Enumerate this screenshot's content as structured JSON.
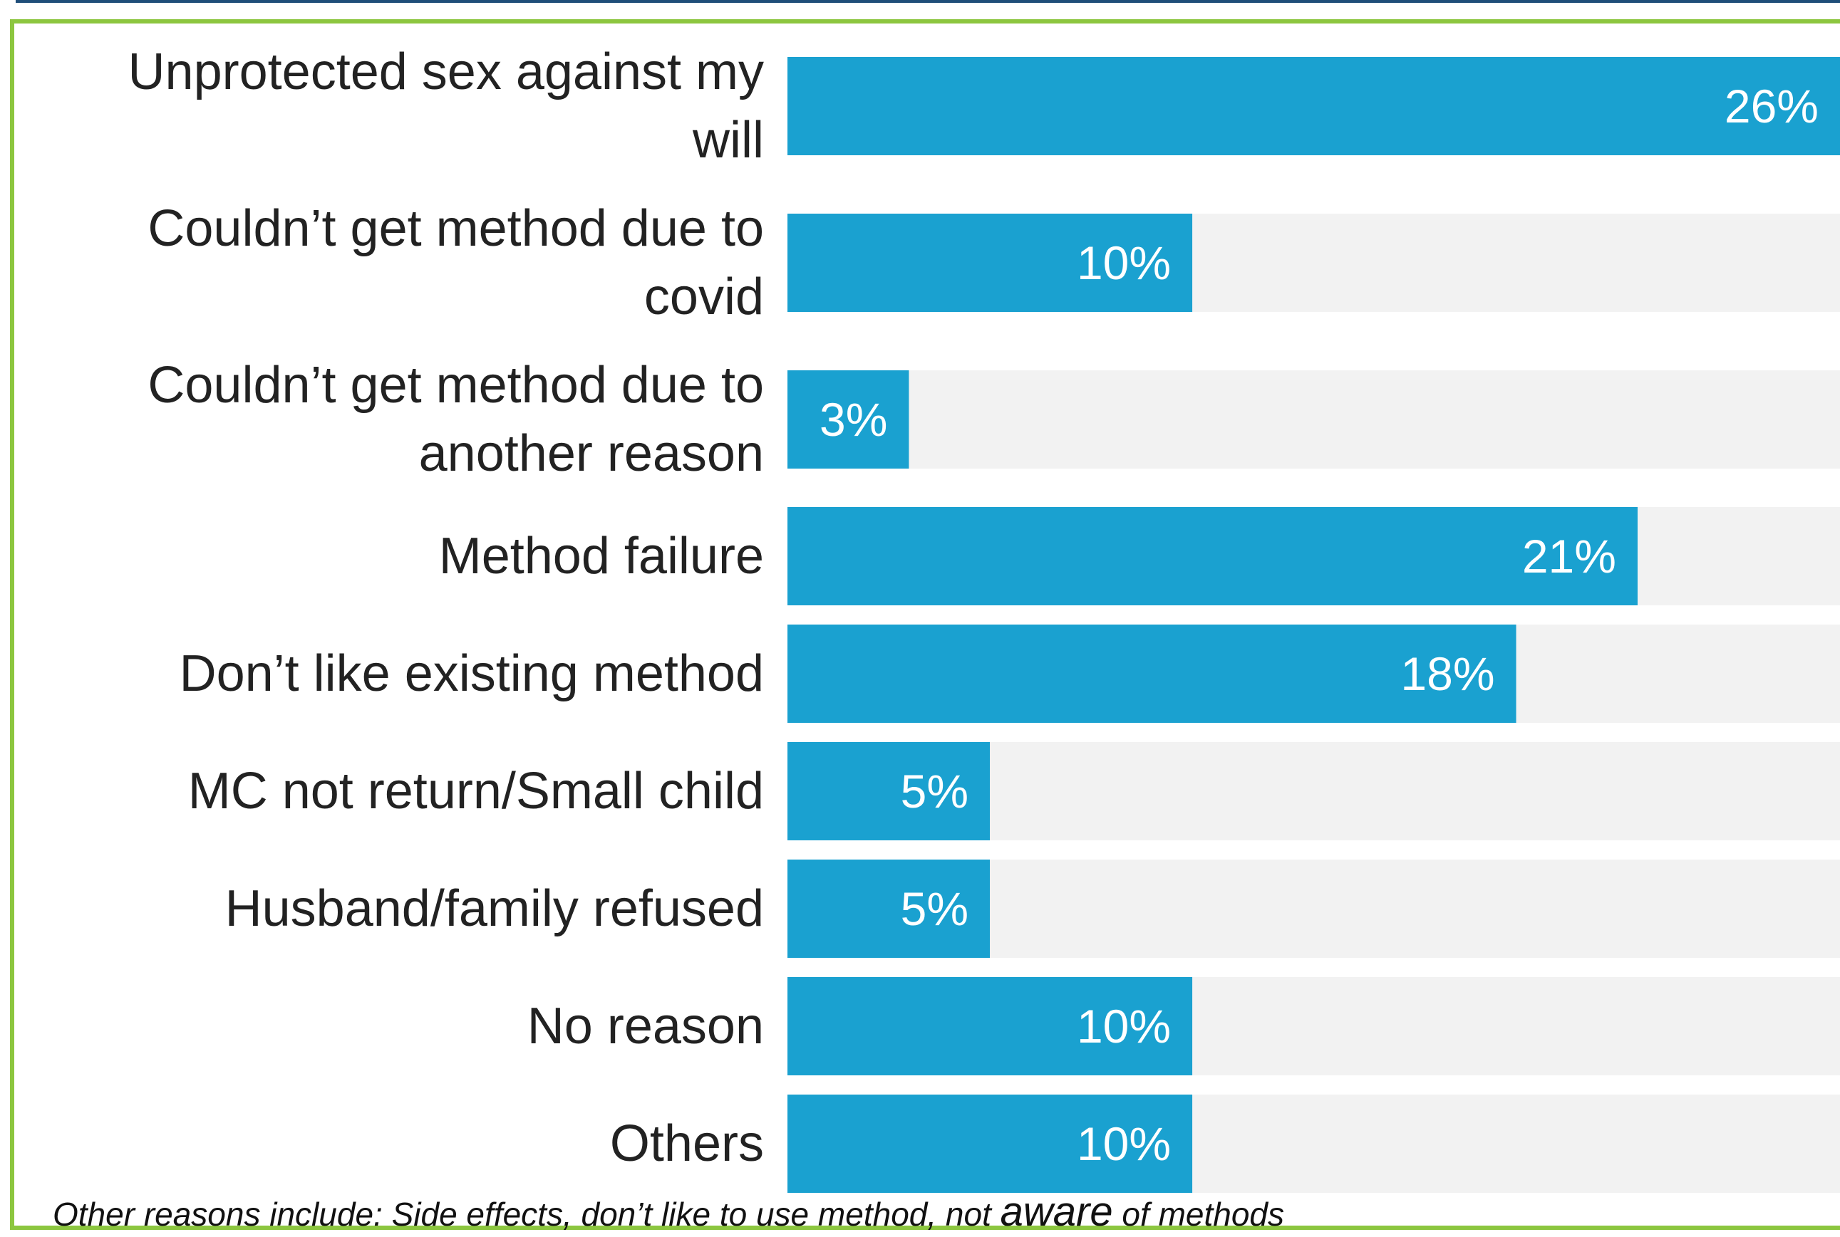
{
  "chart_data": {
    "type": "bar",
    "orientation": "horizontal",
    "categories": [
      [
        "Unprotected sex against my",
        "will"
      ],
      [
        "Couldn’t get method due to",
        "covid"
      ],
      [
        "Couldn’t get method due to",
        "another reason"
      ],
      [
        "Method failure"
      ],
      [
        "Don’t like existing method"
      ],
      [
        "MC not return/Small child"
      ],
      [
        "Husband/family refused"
      ],
      [
        "No reason"
      ],
      [
        "Others"
      ]
    ],
    "values": [
      26,
      10,
      3,
      21,
      18,
      5,
      5,
      10,
      10
    ],
    "value_labels": [
      "26%",
      "10%",
      "3%",
      "21%",
      "18%",
      "5%",
      "5%",
      "10%",
      "10%"
    ],
    "xlim": [
      0,
      26
    ],
    "bar_color": "#1aa1d0",
    "track_color": "#f2f2f2"
  },
  "footnote": {
    "prefix": "Other reasons include: Side effects, don’t like to use method, not ",
    "emphasis": "aware",
    "suffix": " of methods"
  },
  "colors": {
    "frame": "#8cc63f",
    "top_rule": "#1f4e79"
  }
}
